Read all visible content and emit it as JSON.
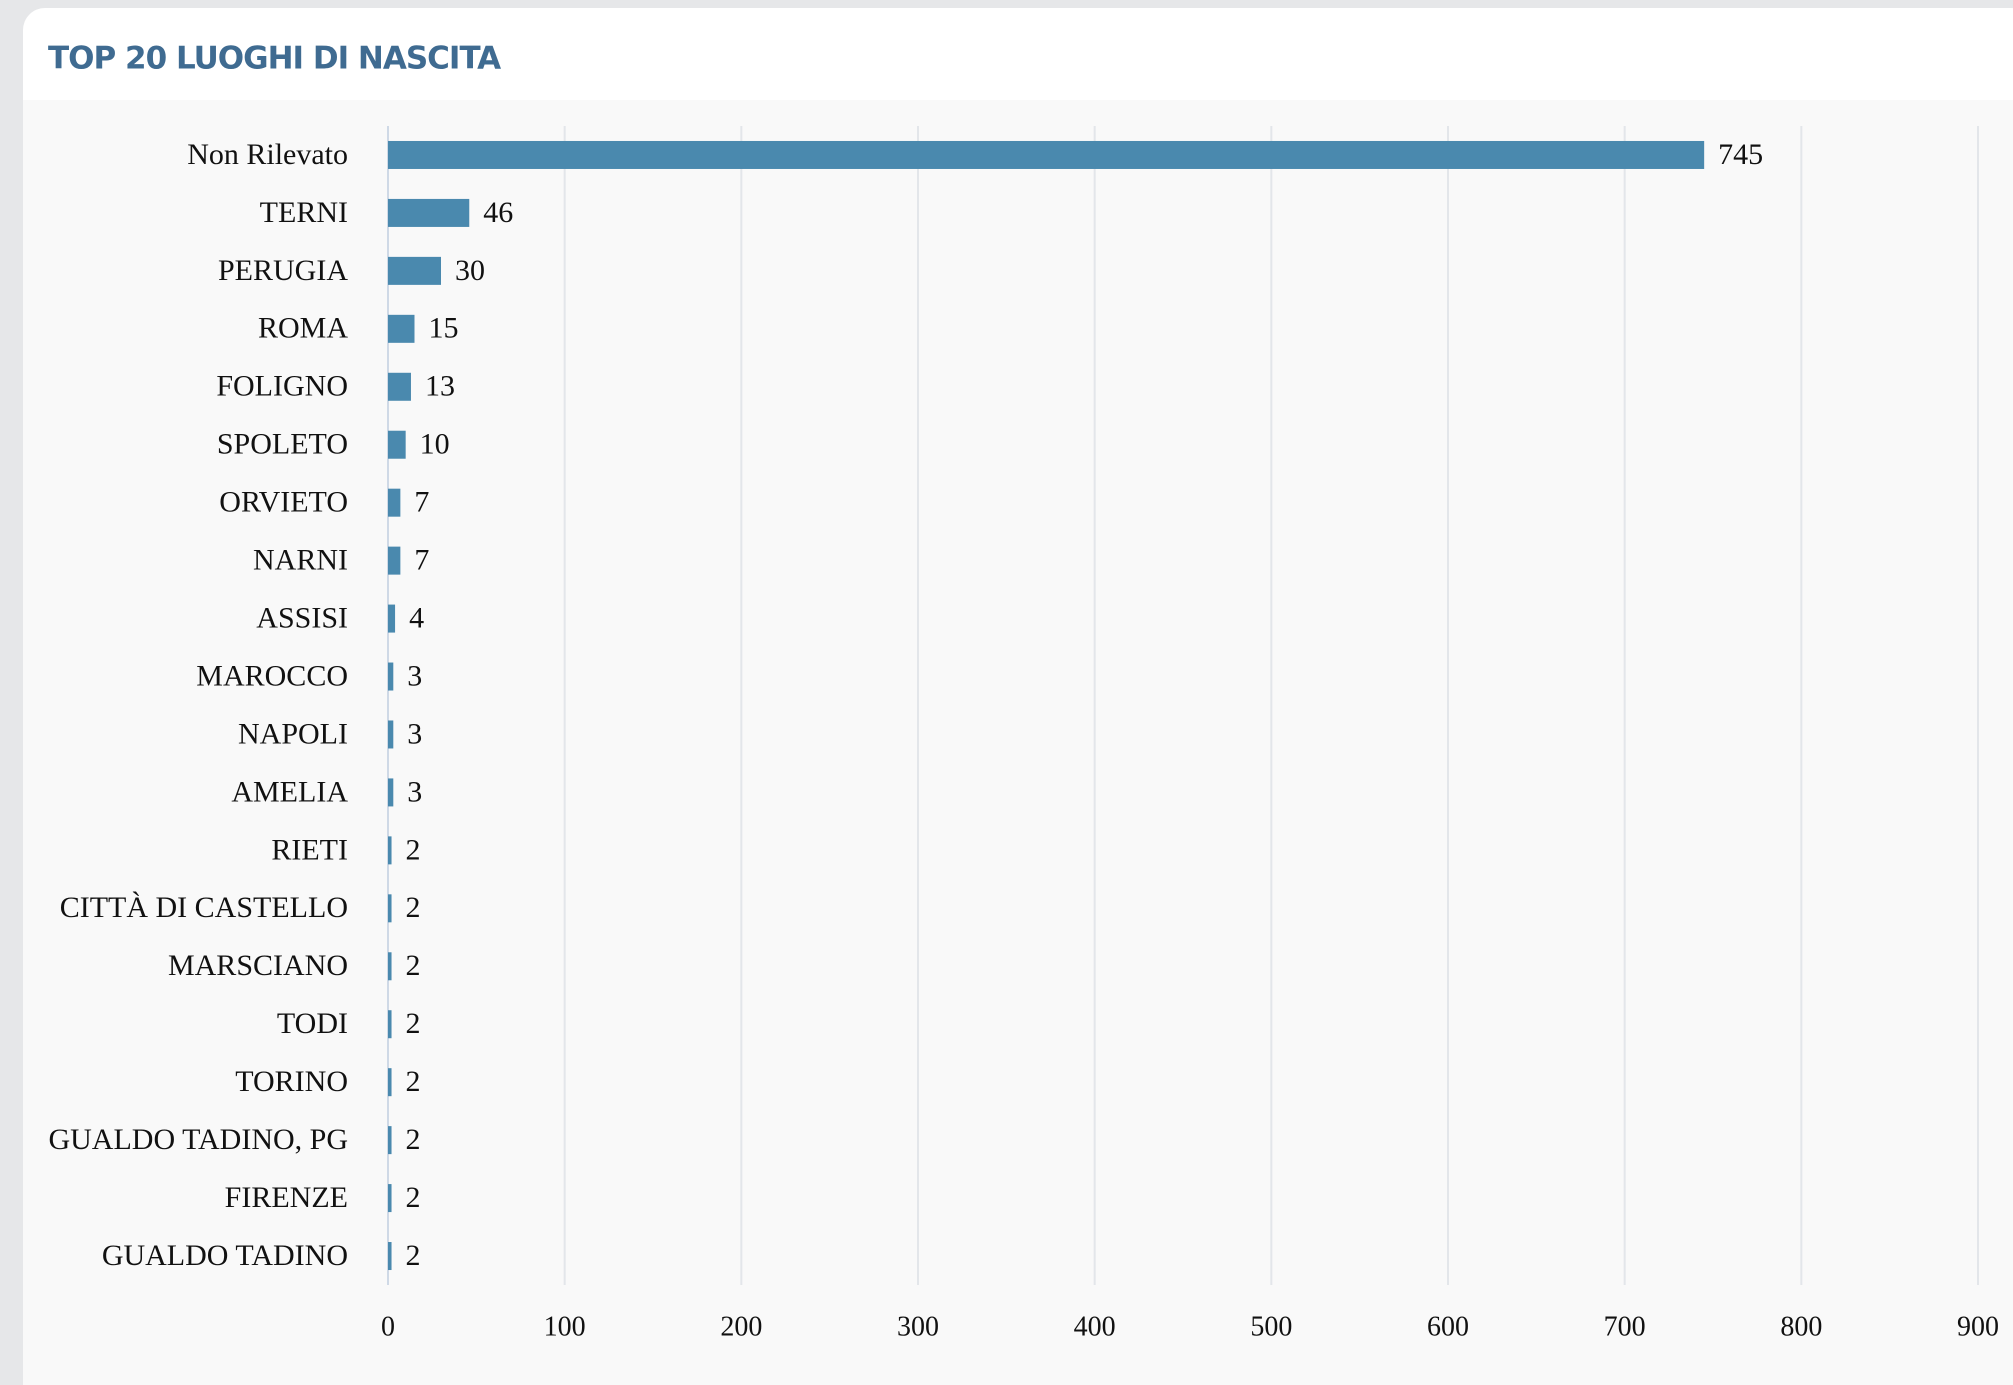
{
  "chart_data": {
    "type": "bar",
    "orientation": "horizontal",
    "title": "TOP 20 LUOGHI DI NASCITA",
    "categories": [
      "Non Rilevato",
      "TERNI",
      "PERUGIA",
      "ROMA",
      "FOLIGNO",
      "SPOLETO",
      "ORVIETO",
      "NARNI",
      "ASSISI",
      "MAROCCO",
      "NAPOLI",
      "AMELIA",
      "RIETI",
      "CITTÀ DI CASTELLO",
      "MARSCIANO",
      "TODI",
      "TORINO",
      "GUALDO TADINO, PG",
      "FIRENZE",
      "GUALDO TADINO"
    ],
    "values": [
      745,
      46,
      30,
      15,
      13,
      10,
      7,
      7,
      4,
      3,
      3,
      3,
      2,
      2,
      2,
      2,
      2,
      2,
      2,
      2
    ],
    "color": "#4a89ae",
    "xlim": [
      0,
      900
    ],
    "xticks": [
      0,
      100,
      200,
      300,
      400,
      500,
      600,
      700,
      800,
      900
    ],
    "grid": true
  }
}
